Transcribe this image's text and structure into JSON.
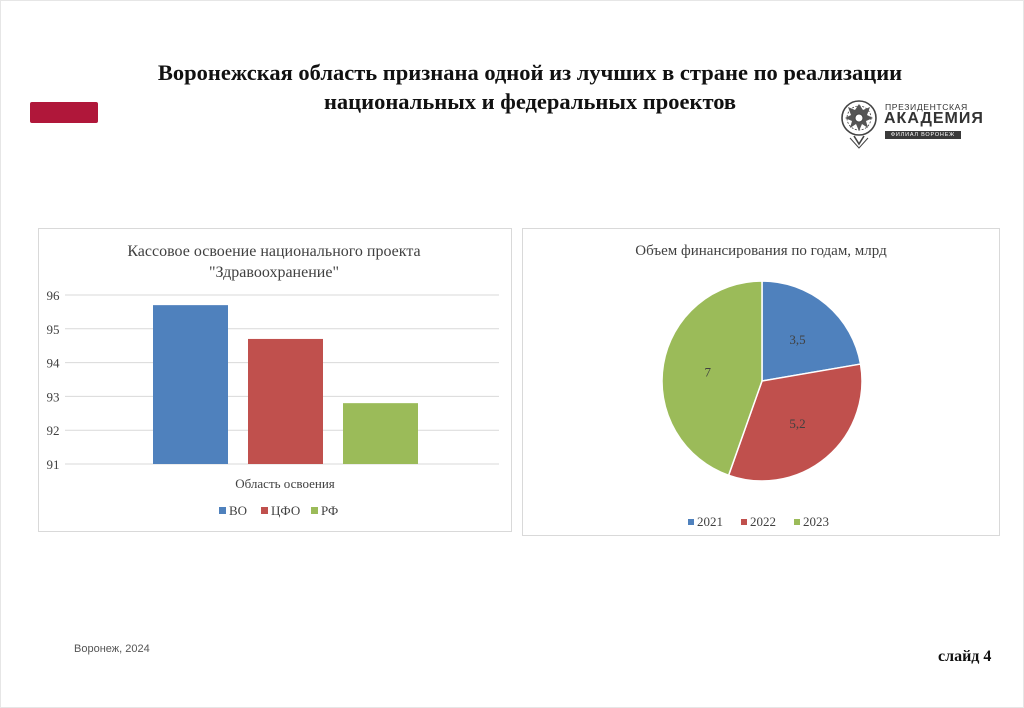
{
  "slide": {
    "title_line1": "Воронежская область признана одной из лучших в стране по реализации",
    "title_line2": "национальных и федеральных проектов",
    "accent_color": "#b0173a",
    "footer_left": "Воронеж, 2024",
    "footer_right": "слайд 4"
  },
  "logo": {
    "line1": "ПРЕЗИДЕНТСКАЯ",
    "line2": "АКАДЕМИЯ",
    "line3": "ФИЛИАЛ ВОРОНЕЖ",
    "icon": "eagle-emblem-icon"
  },
  "chart_data": [
    {
      "type": "bar",
      "title_line1": "Кассовое освоение национального проекта",
      "title_line2": "\"Здравоохранение\"",
      "xlabel": "Область освоения",
      "ylabel": "",
      "ylim": [
        91,
        96
      ],
      "yticks": [
        91,
        92,
        93,
        94,
        95,
        96
      ],
      "grid": true,
      "legend_position": "bottom",
      "series": [
        {
          "name": "ВО",
          "value": 95.7,
          "color": "#4f81bd"
        },
        {
          "name": "ЦФО",
          "value": 94.7,
          "color": "#c0504d"
        },
        {
          "name": "РФ",
          "value": 92.8,
          "color": "#9bbb59"
        }
      ]
    },
    {
      "type": "pie",
      "title": "Объем финансирования по годам, млрд",
      "legend_position": "bottom",
      "slices": [
        {
          "name": "2021",
          "value": 3.5,
          "label": "3,5",
          "color": "#4f81bd"
        },
        {
          "name": "2022",
          "value": 5.2,
          "label": "5,2",
          "color": "#c0504d"
        },
        {
          "name": "2023",
          "value": 7,
          "label": "7",
          "color": "#9bbb59"
        }
      ]
    }
  ]
}
